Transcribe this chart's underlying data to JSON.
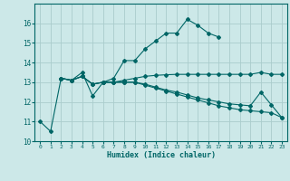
{
  "background_color": "#cce8e8",
  "grid_color": "#aacccc",
  "line_color": "#006666",
  "xlabel": "Humidex (Indice chaleur)",
  "ylim": [
    10,
    17
  ],
  "xlim": [
    -0.5,
    23.5
  ],
  "yticks": [
    10,
    11,
    12,
    13,
    14,
    15,
    16
  ],
  "xticks": [
    0,
    1,
    2,
    3,
    4,
    5,
    6,
    7,
    8,
    9,
    10,
    11,
    12,
    13,
    14,
    15,
    16,
    17,
    18,
    19,
    20,
    21,
    22,
    23
  ],
  "series": [
    {
      "x": [
        0,
        1,
        2,
        3,
        4,
        5,
        6,
        7,
        8,
        9,
        10,
        11,
        12,
        13,
        14,
        15,
        16,
        17
      ],
      "y": [
        11.0,
        10.5,
        13.2,
        13.1,
        13.5,
        12.3,
        13.0,
        13.2,
        14.1,
        14.1,
        14.7,
        15.1,
        15.5,
        15.5,
        16.2,
        15.9,
        15.5,
        15.3
      ]
    },
    {
      "x": [
        2,
        3,
        4,
        5,
        6,
        7,
        8,
        9,
        10,
        11,
        12,
        13,
        14,
        15,
        16,
        17,
        18,
        19,
        20,
        21,
        22,
        23
      ],
      "y": [
        13.2,
        13.1,
        13.3,
        12.9,
        13.0,
        13.0,
        13.1,
        13.2,
        13.3,
        13.35,
        13.38,
        13.4,
        13.4,
        13.4,
        13.4,
        13.4,
        13.4,
        13.4,
        13.4,
        13.5,
        13.4,
        13.4
      ]
    },
    {
      "x": [
        2,
        3,
        4,
        5,
        6,
        7,
        8,
        9,
        10,
        11,
        12,
        13,
        14,
        15,
        16,
        17,
        18,
        19,
        20,
        21,
        22,
        23
      ],
      "y": [
        13.2,
        13.1,
        13.3,
        12.9,
        13.0,
        13.0,
        13.0,
        13.0,
        12.9,
        12.75,
        12.6,
        12.5,
        12.35,
        12.2,
        12.1,
        12.0,
        11.9,
        11.85,
        11.8,
        12.5,
        11.85,
        11.2
      ]
    },
    {
      "x": [
        2,
        3,
        4,
        5,
        6,
        7,
        8,
        9,
        10,
        11,
        12,
        13,
        14,
        15,
        16,
        17,
        18,
        19,
        20,
        21,
        22,
        23
      ],
      "y": [
        13.2,
        13.1,
        13.3,
        12.9,
        13.0,
        13.0,
        13.0,
        13.0,
        12.85,
        12.7,
        12.55,
        12.4,
        12.25,
        12.1,
        11.95,
        11.8,
        11.7,
        11.6,
        11.55,
        11.5,
        11.45,
        11.2
      ]
    }
  ]
}
